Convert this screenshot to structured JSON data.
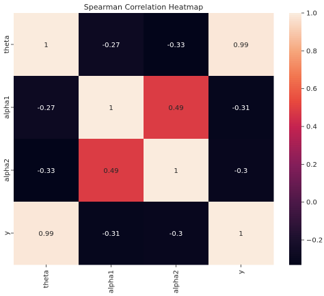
{
  "chart_data": {
    "type": "heatmap",
    "title": "Spearman Correlation Heatmap",
    "xlabel": "",
    "ylabel": "",
    "x_categories": [
      "theta",
      "alpha1",
      "alpha2",
      "y"
    ],
    "y_categories": [
      "theta",
      "alpha1",
      "alpha2",
      "y"
    ],
    "values": [
      [
        1,
        -0.27,
        -0.33,
        0.99
      ],
      [
        -0.27,
        1,
        0.49,
        -0.31
      ],
      [
        -0.33,
        0.49,
        1,
        -0.3
      ],
      [
        0.99,
        -0.31,
        -0.3,
        1
      ]
    ],
    "annotations": [
      [
        "1",
        "-0.27",
        "-0.33",
        "0.99"
      ],
      [
        "-0.27",
        "1",
        "0.49",
        "-0.31"
      ],
      [
        "-0.33",
        "0.49",
        "1",
        "-0.3"
      ],
      [
        "0.99",
        "-0.31",
        "-0.3",
        "1"
      ]
    ],
    "colorbar": {
      "range": [
        -0.33,
        1.0
      ],
      "ticks": [
        1.0,
        0.8,
        0.6,
        0.4,
        0.2,
        0.0,
        -0.2
      ],
      "tick_labels": [
        "1.0",
        "0.8",
        "0.6",
        "0.4",
        "0.2",
        "0.0",
        "−0.2"
      ]
    },
    "colormap": "rocket",
    "grid": false,
    "legend_placement": "right"
  }
}
